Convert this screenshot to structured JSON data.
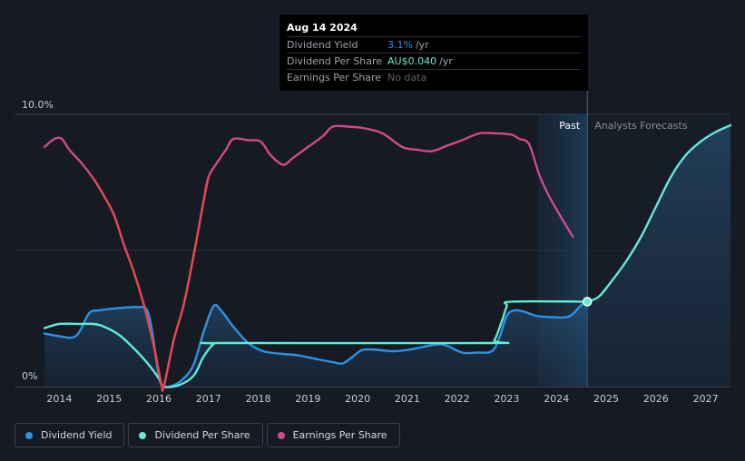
{
  "tooltip": {
    "date": "Aug 14 2024",
    "rows": [
      {
        "label": "Dividend Yield",
        "value": "3.1%",
        "unit": "/yr",
        "color": "#2994e6"
      },
      {
        "label": "Dividend Per Share",
        "value": "AU$0.040",
        "unit": "/yr",
        "color": "#64ead4"
      },
      {
        "label": "Earnings Per Share",
        "value": "No data",
        "unit": ""
      }
    ]
  },
  "legend": [
    {
      "label": "Dividend Yield",
      "color": "#2994e6"
    },
    {
      "label": "Dividend Per Share",
      "color": "#64ead4"
    },
    {
      "label": "Earnings Per Share",
      "color": "#cf4a8b"
    }
  ],
  "chart_data": {
    "type": "line",
    "title": "",
    "xlabel": "",
    "ylabel": "",
    "y_tick_labels": [
      "10.0%",
      "0%"
    ],
    "ylim": [
      0,
      10
    ],
    "xlim": [
      2013.7,
      2027.5
    ],
    "x_ticks": [
      2014,
      2015,
      2016,
      2017,
      2018,
      2019,
      2020,
      2021,
      2022,
      2023,
      2024,
      2025,
      2026,
      2027
    ],
    "past_region_label": "Past",
    "forecast_region_label": "Analysts Forecasts",
    "past_region_start": 2023.62,
    "present": 2024.62,
    "series": [
      {
        "name": "Dividend Yield",
        "color": "#2994e6",
        "points": [
          [
            2013.7,
            1.95
          ],
          [
            2014.0,
            1.85
          ],
          [
            2014.25,
            1.8
          ],
          [
            2014.4,
            2.0
          ],
          [
            2014.6,
            2.7
          ],
          [
            2014.8,
            2.8
          ],
          [
            2015.0,
            2.85
          ],
          [
            2015.3,
            2.9
          ],
          [
            2015.6,
            2.92
          ],
          [
            2015.75,
            2.85
          ],
          [
            2015.85,
            2.2
          ],
          [
            2016.0,
            0.4
          ],
          [
            2016.1,
            0.0
          ],
          [
            2016.3,
            0.05
          ],
          [
            2016.5,
            0.3
          ],
          [
            2016.7,
            0.8
          ],
          [
            2016.9,
            2.0
          ],
          [
            2017.1,
            2.95
          ],
          [
            2017.25,
            2.8
          ],
          [
            2017.5,
            2.2
          ],
          [
            2017.8,
            1.6
          ],
          [
            2018.1,
            1.3
          ],
          [
            2018.5,
            1.2
          ],
          [
            2018.8,
            1.15
          ],
          [
            2019.2,
            1.0
          ],
          [
            2019.5,
            0.9
          ],
          [
            2019.7,
            0.85
          ],
          [
            2019.9,
            1.1
          ],
          [
            2020.1,
            1.35
          ],
          [
            2020.4,
            1.35
          ],
          [
            2020.7,
            1.3
          ],
          [
            2021.0,
            1.35
          ],
          [
            2021.3,
            1.45
          ],
          [
            2021.6,
            1.55
          ],
          [
            2021.8,
            1.5
          ],
          [
            2022.1,
            1.25
          ],
          [
            2022.4,
            1.25
          ],
          [
            2022.7,
            1.3
          ],
          [
            2022.85,
            1.8
          ],
          [
            2023.0,
            2.6
          ],
          [
            2023.15,
            2.8
          ],
          [
            2023.35,
            2.75
          ],
          [
            2023.6,
            2.6
          ],
          [
            2023.9,
            2.55
          ],
          [
            2024.2,
            2.55
          ],
          [
            2024.35,
            2.7
          ],
          [
            2024.5,
            3.0
          ],
          [
            2024.62,
            3.1
          ]
        ]
      },
      {
        "name": "Dividend Per Share",
        "color": "#64ead4",
        "points": [
          [
            2013.7,
            2.15
          ],
          [
            2014.0,
            2.3
          ],
          [
            2014.4,
            2.3
          ],
          [
            2014.7,
            2.3
          ],
          [
            2014.9,
            2.2
          ],
          [
            2015.2,
            1.9
          ],
          [
            2015.5,
            1.4
          ],
          [
            2015.8,
            0.8
          ],
          [
            2016.0,
            0.3
          ],
          [
            2016.1,
            0.0
          ],
          [
            2016.4,
            0.05
          ],
          [
            2016.7,
            0.4
          ],
          [
            2016.9,
            1.1
          ],
          [
            2017.1,
            1.55
          ],
          [
            2017.3,
            1.6
          ],
          [
            2022.6,
            1.6
          ],
          [
            2022.75,
            1.7
          ],
          [
            2022.9,
            2.4
          ],
          [
            2023.0,
            2.95
          ],
          [
            2023.1,
            3.12
          ],
          [
            2024.62,
            3.12
          ]
        ]
      },
      {
        "name": "Dividend Per Share (forecast)",
        "color": "#64ead4",
        "points": [
          [
            2024.62,
            3.12
          ],
          [
            2024.85,
            3.3
          ],
          [
            2025.1,
            3.85
          ],
          [
            2025.4,
            4.6
          ],
          [
            2025.7,
            5.5
          ],
          [
            2026.0,
            6.6
          ],
          [
            2026.3,
            7.7
          ],
          [
            2026.6,
            8.5
          ],
          [
            2026.9,
            9.0
          ],
          [
            2027.2,
            9.35
          ],
          [
            2027.5,
            9.6
          ]
        ]
      },
      {
        "name": "Earnings Per Share",
        "color": "#cf4a8b",
        "points": [
          [
            2013.7,
            8.8
          ],
          [
            2013.9,
            9.1
          ],
          [
            2014.05,
            9.1
          ],
          [
            2014.2,
            8.7
          ],
          [
            2014.45,
            8.2
          ],
          [
            2014.7,
            7.6
          ],
          [
            2014.9,
            7.0
          ],
          [
            2015.1,
            6.3
          ],
          [
            2015.3,
            5.2
          ],
          [
            2015.5,
            4.2
          ],
          [
            2015.7,
            3.0
          ],
          [
            2015.9,
            1.5
          ],
          [
            2016.05,
            0.1
          ],
          [
            2016.1,
            0.0
          ],
          [
            2016.3,
            1.7
          ],
          [
            2016.5,
            3.0
          ],
          [
            2016.7,
            4.8
          ],
          [
            2016.9,
            6.8
          ],
          [
            2017.0,
            7.7
          ],
          [
            2017.2,
            8.3
          ],
          [
            2017.35,
            8.7
          ],
          [
            2017.5,
            9.1
          ],
          [
            2017.8,
            9.05
          ],
          [
            2018.05,
            9.0
          ],
          [
            2018.25,
            8.5
          ],
          [
            2018.5,
            8.15
          ],
          [
            2018.7,
            8.4
          ],
          [
            2019.0,
            8.8
          ],
          [
            2019.3,
            9.2
          ],
          [
            2019.5,
            9.55
          ],
          [
            2019.8,
            9.55
          ],
          [
            2020.1,
            9.5
          ],
          [
            2020.5,
            9.3
          ],
          [
            2020.9,
            8.8
          ],
          [
            2021.2,
            8.7
          ],
          [
            2021.5,
            8.65
          ],
          [
            2021.8,
            8.85
          ],
          [
            2022.1,
            9.05
          ],
          [
            2022.45,
            9.3
          ],
          [
            2022.8,
            9.3
          ],
          [
            2023.1,
            9.25
          ],
          [
            2023.25,
            9.1
          ],
          [
            2023.45,
            8.9
          ],
          [
            2023.65,
            7.8
          ],
          [
            2023.85,
            7.0
          ],
          [
            2024.1,
            6.2
          ],
          [
            2024.33,
            5.5
          ]
        ]
      }
    ]
  }
}
